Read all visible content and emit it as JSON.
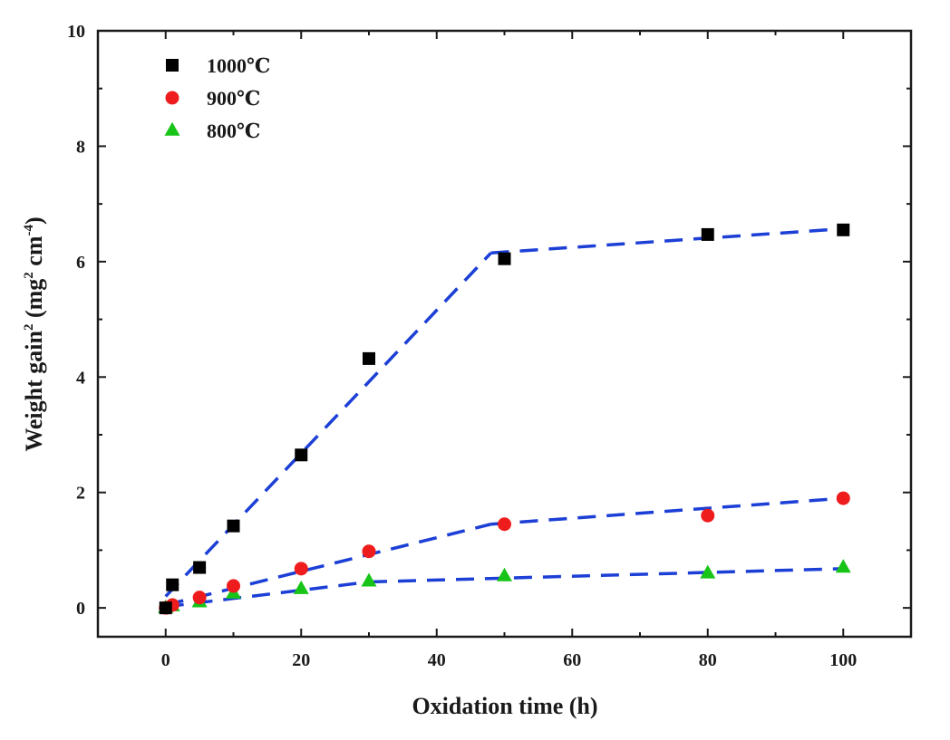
{
  "chart_data": {
    "type": "scatter",
    "xlabel": "Oxidation time (h)",
    "ylabel": "Weight gain",
    "ylabel_sup1": "2",
    "ylabel_units_open": " (mg",
    "ylabel_sup2": "2",
    "ylabel_units_mid": " cm",
    "ylabel_sup3": "-4",
    "ylabel_units_close": ")",
    "xlim": [
      -10,
      110
    ],
    "ylim": [
      -0.5,
      10
    ],
    "x_ticks": [
      0,
      20,
      40,
      60,
      80,
      100
    ],
    "y_ticks": [
      0,
      2,
      4,
      6,
      8,
      10
    ],
    "legend_position": "top-left",
    "grid": false,
    "series": [
      {
        "name": "1000℃",
        "marker": "square",
        "color": "#000000",
        "points": [
          [
            0,
            0
          ],
          [
            1,
            0.4
          ],
          [
            5,
            0.7
          ],
          [
            10,
            1.42
          ],
          [
            20,
            2.65
          ],
          [
            30,
            4.32
          ],
          [
            50,
            6.05
          ],
          [
            80,
            6.47
          ],
          [
            100,
            6.55
          ]
        ],
        "fit": [
          [
            [
              0,
              0.2
            ],
            [
              48,
              6.15
            ]
          ],
          [
            [
              48,
              6.15
            ],
            [
              100,
              6.57
            ]
          ]
        ]
      },
      {
        "name": "900℃",
        "marker": "circle",
        "color": "#ee1c1c",
        "points": [
          [
            0,
            0
          ],
          [
            1,
            0.05
          ],
          [
            5,
            0.18
          ],
          [
            10,
            0.38
          ],
          [
            20,
            0.68
          ],
          [
            30,
            0.98
          ],
          [
            50,
            1.45
          ],
          [
            80,
            1.6
          ],
          [
            100,
            1.9
          ]
        ],
        "fit": [
          [
            [
              0,
              0.05
            ],
            [
              48,
              1.45
            ]
          ],
          [
            [
              48,
              1.45
            ],
            [
              100,
              1.9
            ]
          ]
        ]
      },
      {
        "name": "800℃",
        "marker": "triangle",
        "color": "#18c418",
        "points": [
          [
            0,
            0
          ],
          [
            1,
            0.03
          ],
          [
            5,
            0.1
          ],
          [
            10,
            0.25
          ],
          [
            20,
            0.33
          ],
          [
            30,
            0.46
          ],
          [
            50,
            0.55
          ],
          [
            80,
            0.6
          ],
          [
            100,
            0.7
          ]
        ],
        "fit": [
          [
            [
              0,
              0.02
            ],
            [
              30,
              0.45
            ]
          ],
          [
            [
              30,
              0.45
            ],
            [
              100,
              0.68
            ]
          ]
        ]
      }
    ],
    "fit_line_color": "#1c3fd6"
  }
}
